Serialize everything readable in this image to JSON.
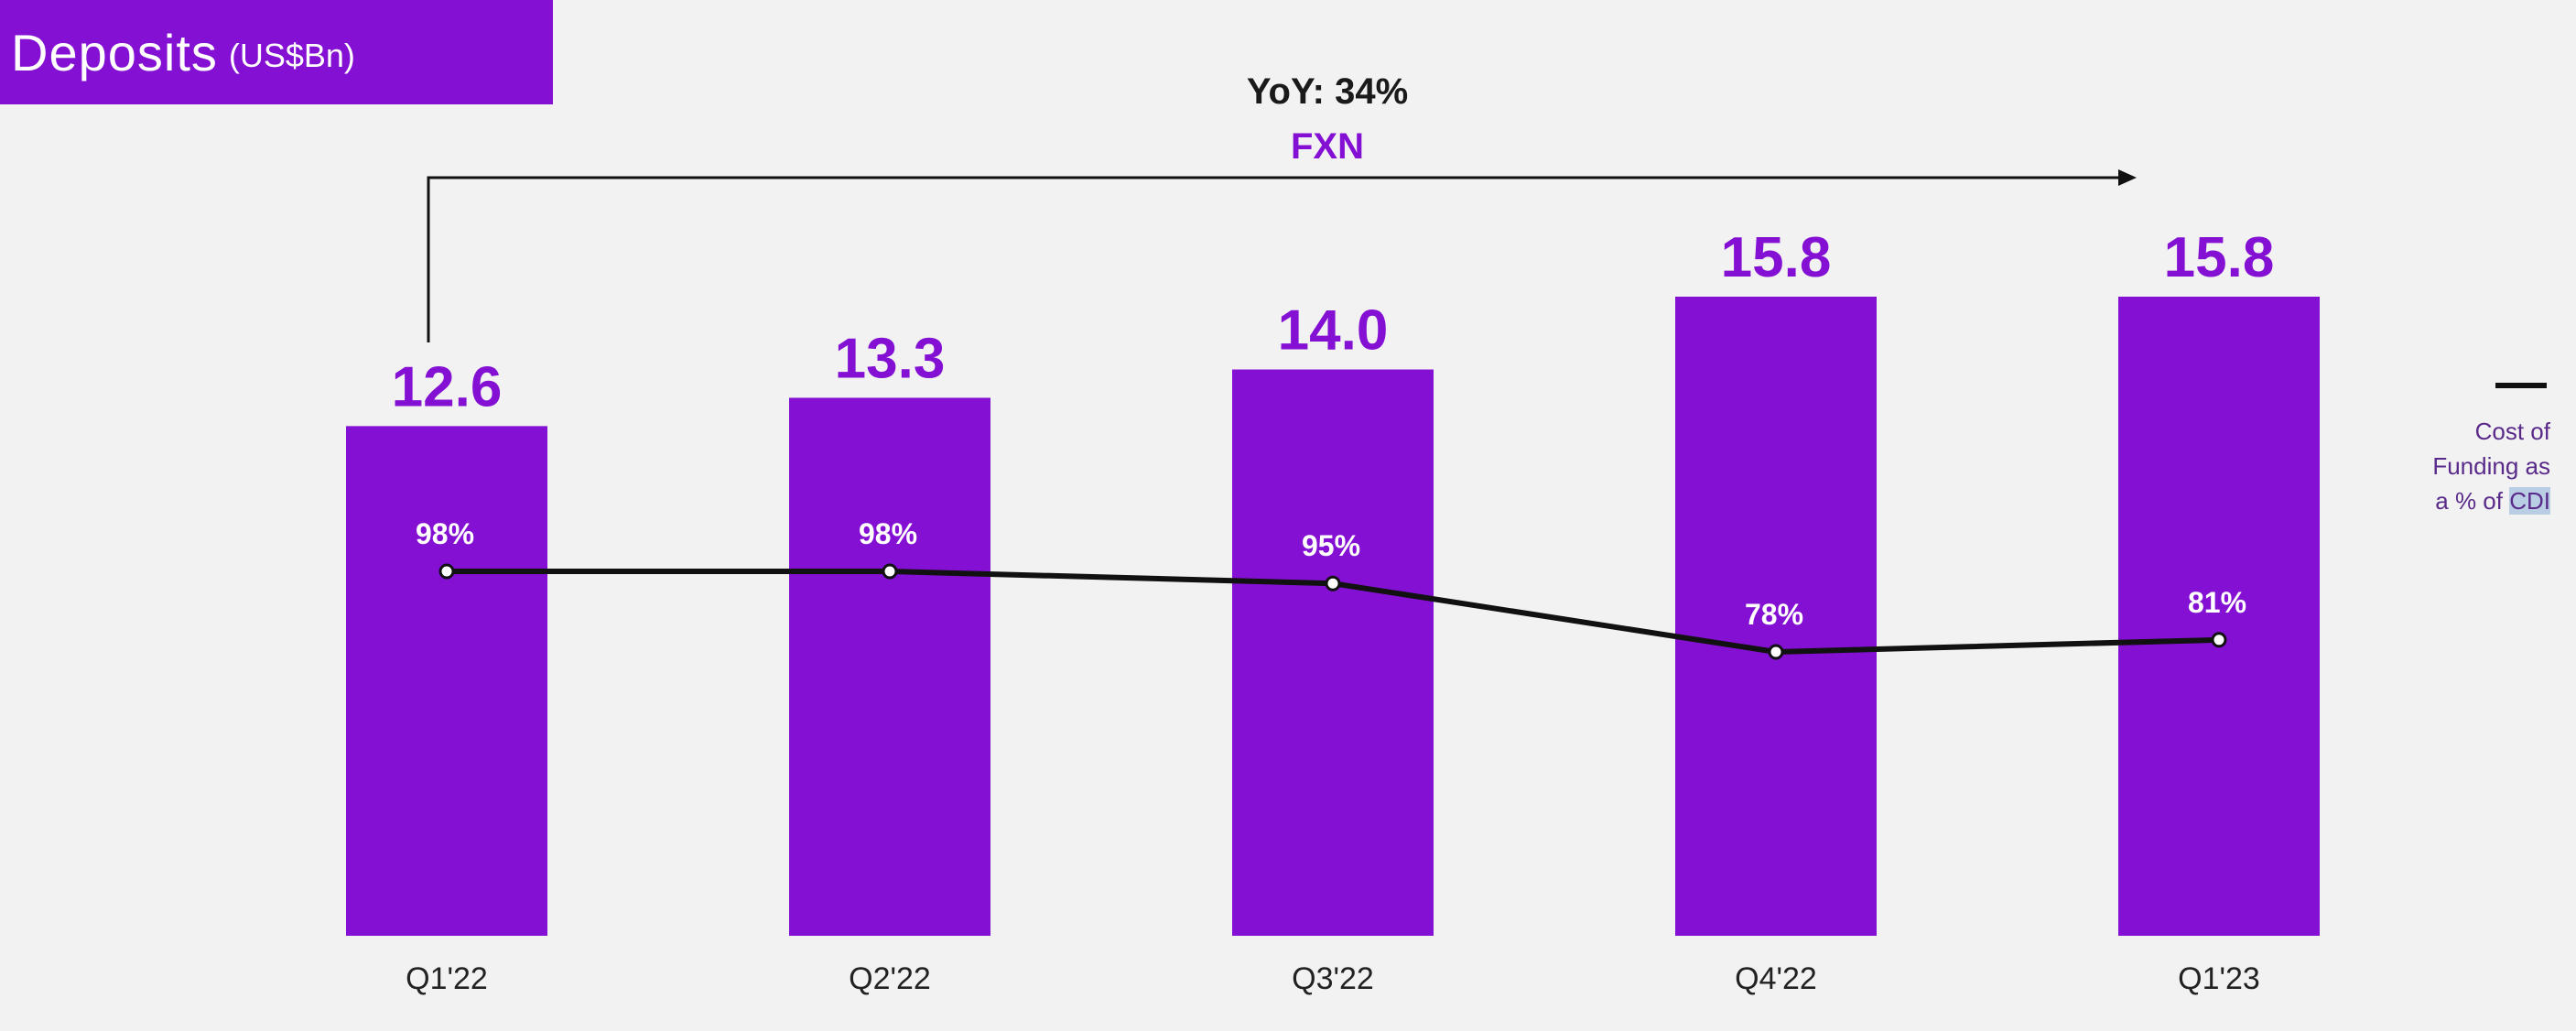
{
  "title": {
    "main": "Deposits",
    "unit": "(US$Bn)"
  },
  "annotation": {
    "yoy": "YoY: 34%",
    "basis": "FXN"
  },
  "legend": {
    "line1": "Cost of",
    "line2": "Funding as",
    "line3_prefix": "a % of ",
    "line3_highlight": "CDI"
  },
  "colors": {
    "bar": "#8410d4",
    "line": "#111111",
    "background": "#f2f2f2"
  },
  "chart_data": {
    "type": "bar",
    "title": "Deposits (US$Bn)",
    "categories": [
      "Q1'22",
      "Q2'22",
      "Q3'22",
      "Q4'22",
      "Q1'23"
    ],
    "series": [
      {
        "name": "Deposits",
        "values": [
          12.6,
          13.3,
          14.0,
          15.8,
          15.8
        ],
        "labels": [
          "12.6",
          "13.3",
          "14.0",
          "15.8",
          "15.8"
        ]
      },
      {
        "name": "Cost of Funding as a % of CDI",
        "type": "line",
        "values": [
          98,
          98,
          95,
          78,
          81
        ],
        "labels": [
          "98%",
          "98%",
          "95%",
          "78%",
          "81%"
        ]
      }
    ],
    "ylim": [
      0,
      15.8
    ],
    "xlabel": "",
    "ylabel": ""
  }
}
